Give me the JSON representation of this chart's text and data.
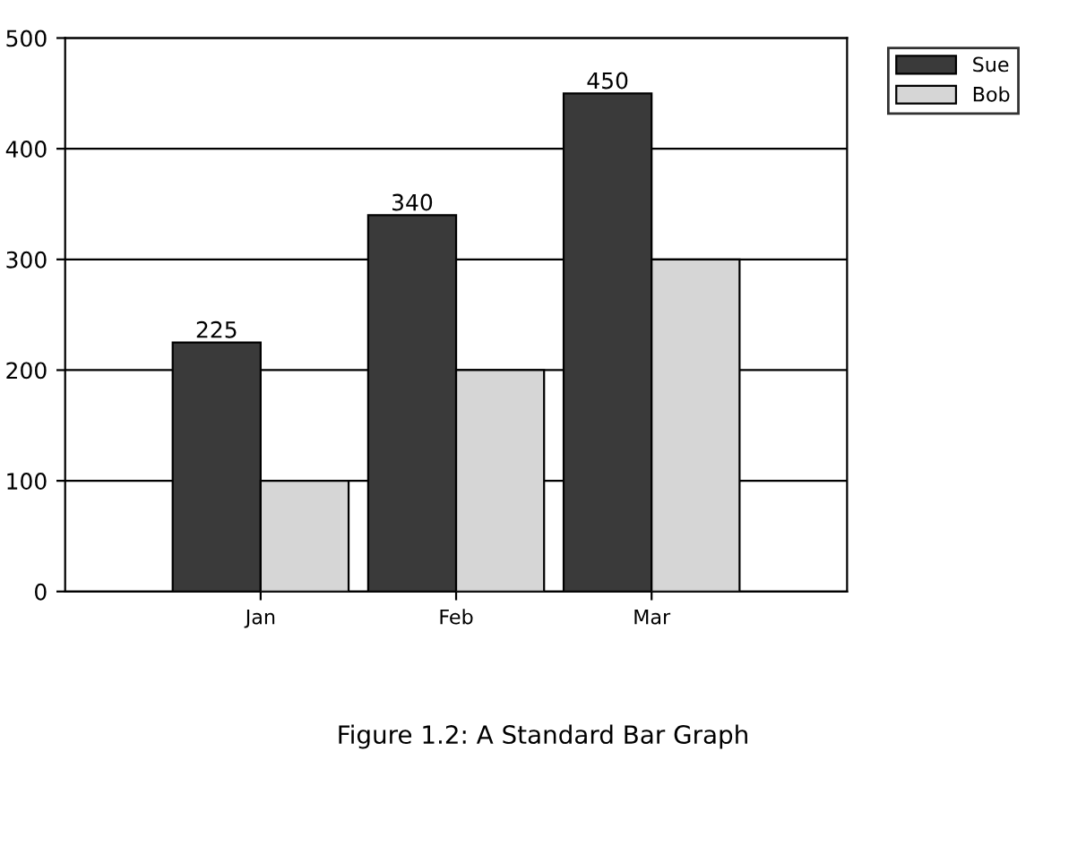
{
  "chart_data": {
    "type": "bar",
    "categories": [
      "Jan",
      "Feb",
      "Mar"
    ],
    "series": [
      {
        "name": "Sue",
        "color": "#3a3a3a",
        "values": [
          225,
          340,
          450
        ],
        "value_labels": [
          "225",
          "340",
          "450"
        ]
      },
      {
        "name": "Bob",
        "color": "#d6d6d6",
        "values": [
          100,
          200,
          300
        ],
        "value_labels": [
          null,
          null,
          null
        ]
      }
    ],
    "ylim": [
      0,
      500
    ],
    "yticks": [
      0,
      100,
      200,
      300,
      400,
      500
    ],
    "grid": "y",
    "legend": "top right",
    "annotations": [
      "Figure 1.2: A Standard Bar Graph"
    ]
  }
}
